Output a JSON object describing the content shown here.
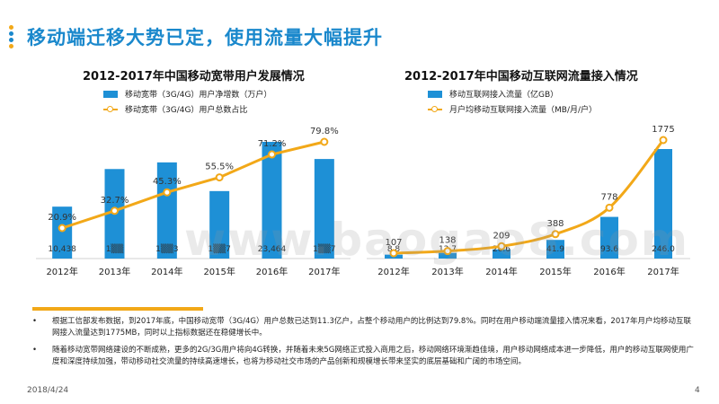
{
  "page": {
    "title": "移动端迁移大势已定，使用流量大幅提升",
    "deco_colors": [
      "#f2a818",
      "#1a88cc",
      "#1a88cc",
      "#f2a818"
    ]
  },
  "chart_data": [
    {
      "type": "bar",
      "title": "2012-2017年中国移动宽带用户发展情况",
      "categories": [
        "2012年",
        "2013年",
        "2014年",
        "2015年",
        "2016年",
        "2017年"
      ],
      "series": [
        {
          "name": "移动宽带（3G/4G）用户净增数（万户）",
          "kind": "bar",
          "color": "#1e90d6",
          "values": [
            10438,
            18000,
            19333,
            13567,
            23464,
            20017
          ],
          "labels": [
            "10,438",
            "1▒▒",
            "1▒▒3",
            "1▒▒7",
            "23,464",
            "1▒▒7"
          ]
        },
        {
          "name": "移动宽带（3G/4G）用户总数占比",
          "kind": "line",
          "color": "#f2a818",
          "values": [
            20.9,
            32.7,
            45.3,
            55.5,
            71.2,
            79.8
          ],
          "labels": [
            "20.9%",
            "32.7%",
            "45.3%",
            "55.5%",
            "71.2%",
            "79.8%"
          ]
        }
      ]
    },
    {
      "type": "bar",
      "title": "2012-2017年中国移动互联网流量接入情况",
      "categories": [
        "2012年",
        "2013年",
        "2014年",
        "2015年",
        "2016年",
        "2017年"
      ],
      "series": [
        {
          "name": "移动互联网接入流量（亿GB）",
          "kind": "bar",
          "color": "#1e90d6",
          "values": [
            8.8,
            12.7,
            20.6,
            41.9,
            93.6,
            246.0
          ],
          "labels": [
            "8.8",
            "12.7",
            "20.6",
            "41.9",
            "93.6",
            "246.0"
          ]
        },
        {
          "name": "月户均移动互联网接入流量（MB/月/户）",
          "kind": "line",
          "color": "#f2a818",
          "values": [
            107,
            138,
            209,
            388,
            778,
            1775
          ],
          "labels": [
            "107",
            "138",
            "209",
            "388",
            "778",
            "1775"
          ]
        }
      ]
    }
  ],
  "watermark": "www.baogao8.com",
  "notes": [
    "根据工信部发布数据，到2017年底，中国移动宽带（3G/4G）用户总数已达到11.3亿户，占整个移动用户的比例达到79.8%。同时在用户移动端流量接入情况来看，2017年月户均移动互联网接入流量达到1775MB，同时以上指标数据还在稳健增长中。",
    "随着移动宽带网络建设的不断成熟，更多的2G/3G用户将向4G转换，并随着未来5G网络正式投入商用之后，移动网络环境渐趋佳境，用户移动网络成本进一步降低，用户的移动互联网使用广度和深度持续加强，带动移动社交流量的持续高速增长，也将为移动社交市场的产品创新和规模增长带来坚实的底层基础和广阔的市场空间。"
  ],
  "footer": {
    "date": "2018/4/24",
    "page_number": "4"
  }
}
